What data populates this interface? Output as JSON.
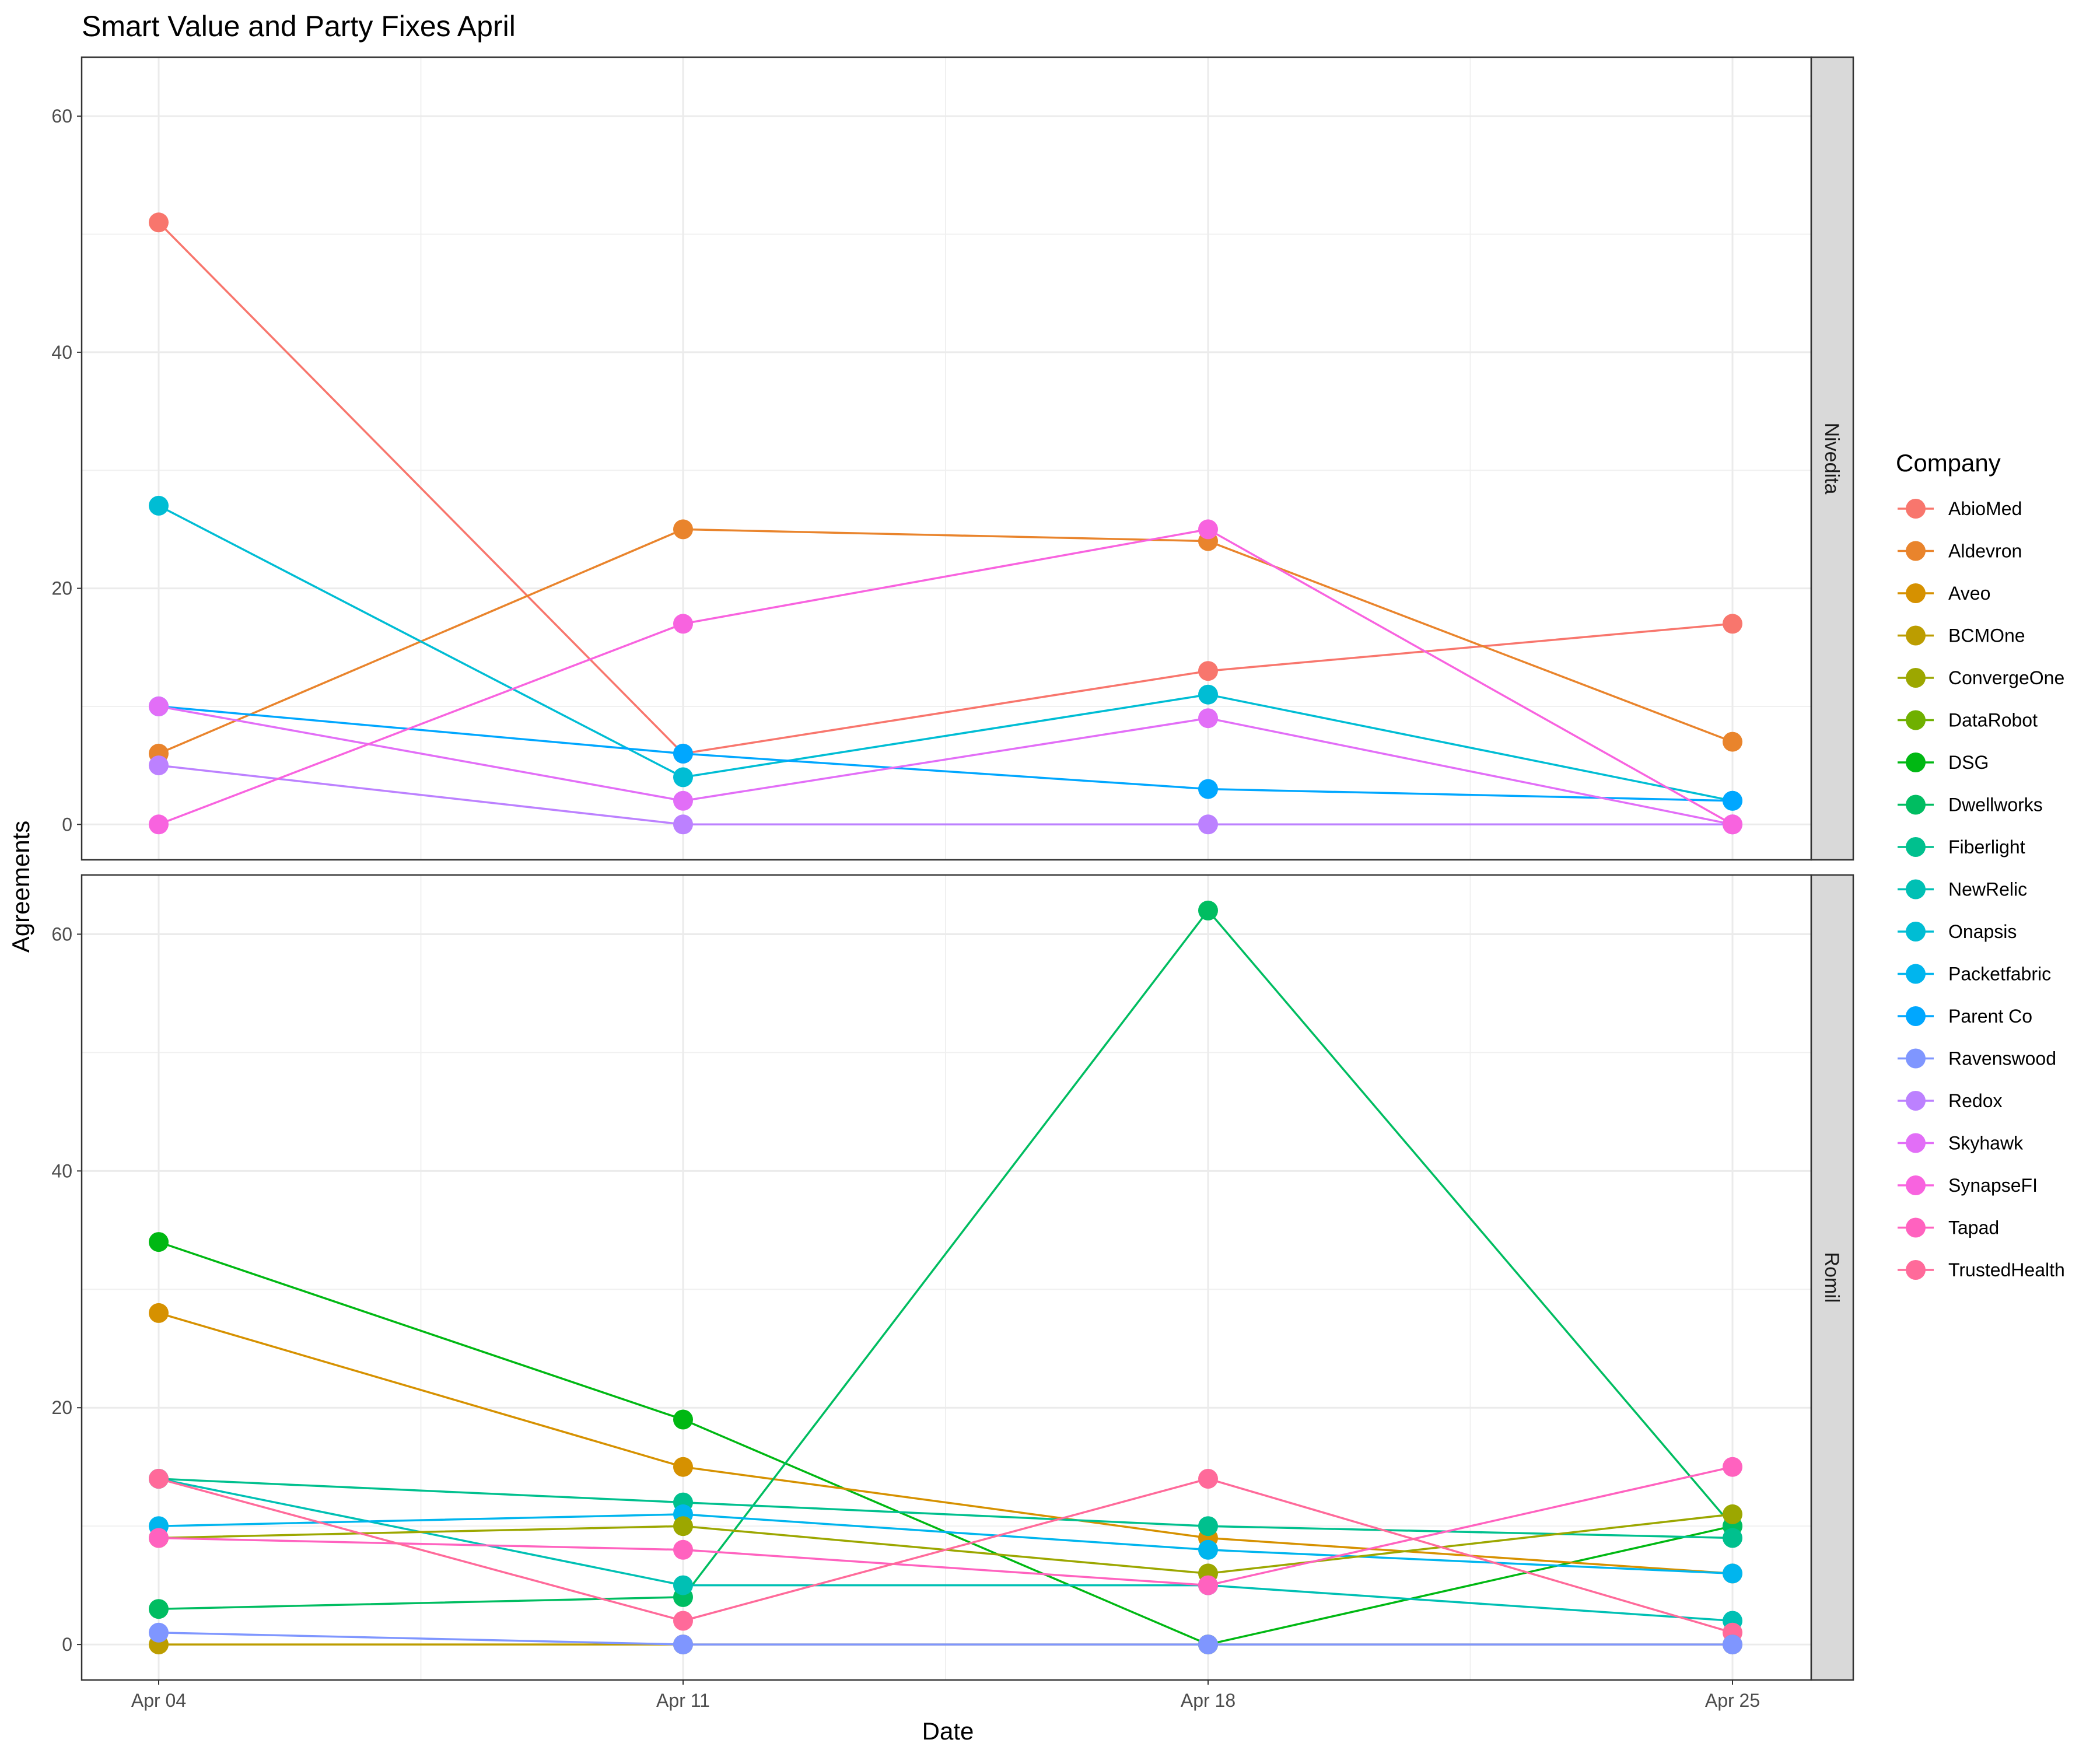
{
  "chart_data": {
    "type": "line",
    "title": "Smart Value and Party Fixes April",
    "xlabel": "Date",
    "ylabel": "Agreements",
    "x": [
      "Apr 04",
      "Apr 11",
      "Apr 18",
      "Apr 25"
    ],
    "ylim": [
      -3,
      65
    ],
    "yticks": [
      0,
      20,
      40,
      60
    ],
    "grid": true,
    "legend": {
      "title": "Company",
      "position": "right"
    },
    "companies": [
      {
        "name": "AbioMed",
        "color": "#F8766D"
      },
      {
        "name": "Aldevron",
        "color": "#E9842C"
      },
      {
        "name": "Aveo",
        "color": "#D69100"
      },
      {
        "name": "BCMOne",
        "color": "#BC9D00"
      },
      {
        "name": "ConvergeOne",
        "color": "#9CA700"
      },
      {
        "name": "DataRobot",
        "color": "#6FB000"
      },
      {
        "name": "DSG",
        "color": "#00B813"
      },
      {
        "name": "Dwellworks",
        "color": "#00BD61"
      },
      {
        "name": "Fiberlight",
        "color": "#00C08E"
      },
      {
        "name": "NewRelic",
        "color": "#00C0B4"
      },
      {
        "name": "Onapsis",
        "color": "#00BDD4"
      },
      {
        "name": "Packetfabric",
        "color": "#00B5EE"
      },
      {
        "name": "Parent Co",
        "color": "#00A7FF"
      },
      {
        "name": "Ravenswood",
        "color": "#7F96FF"
      },
      {
        "name": "Redox",
        "color": "#BC81FF"
      },
      {
        "name": "Skyhawk",
        "color": "#E26EF7"
      },
      {
        "name": "SynapseFI",
        "color": "#F863DF"
      },
      {
        "name": "Tapad",
        "color": "#FF62BF"
      },
      {
        "name": "TrustedHealth",
        "color": "#FF6A9A"
      }
    ],
    "facets": [
      {
        "label": "Nivedita",
        "series": [
          {
            "name": "AbioMed",
            "values": [
              51,
              6,
              13,
              17
            ]
          },
          {
            "name": "Aldevron",
            "values": [
              6,
              25,
              24,
              7
            ]
          },
          {
            "name": "Onapsis",
            "values": [
              27,
              4,
              11,
              2
            ]
          },
          {
            "name": "Parent Co",
            "values": [
              10,
              6,
              3,
              2
            ]
          },
          {
            "name": "Skyhawk",
            "values": [
              10,
              2,
              9,
              0
            ]
          },
          {
            "name": "Redox",
            "values": [
              5,
              0,
              0,
              0
            ]
          },
          {
            "name": "SynapseFI",
            "values": [
              0,
              17,
              25,
              0
            ]
          }
        ]
      },
      {
        "label": "Romil",
        "series": [
          {
            "name": "DSG",
            "values": [
              34,
              19,
              0,
              10
            ]
          },
          {
            "name": "Aveo",
            "values": [
              28,
              15,
              9,
              6
            ]
          },
          {
            "name": "Dwellworks",
            "values": [
              3,
              4,
              62,
              10
            ]
          },
          {
            "name": "Fiberlight",
            "values": [
              14,
              12,
              10,
              9
            ]
          },
          {
            "name": "NewRelic",
            "values": [
              14,
              5,
              5,
              2
            ]
          },
          {
            "name": "Packetfabric",
            "values": [
              10,
              11,
              8,
              6
            ]
          },
          {
            "name": "ConvergeOne",
            "values": [
              9,
              10,
              6,
              11
            ]
          },
          {
            "name": "Tapad",
            "values": [
              9,
              8,
              5,
              15
            ]
          },
          {
            "name": "TrustedHealth",
            "values": [
              14,
              2,
              14,
              1
            ]
          },
          {
            "name": "BCMOne",
            "values": [
              0,
              0,
              0,
              0
            ]
          },
          {
            "name": "Ravenswood",
            "values": [
              1,
              0,
              0,
              0
            ]
          }
        ]
      }
    ]
  }
}
